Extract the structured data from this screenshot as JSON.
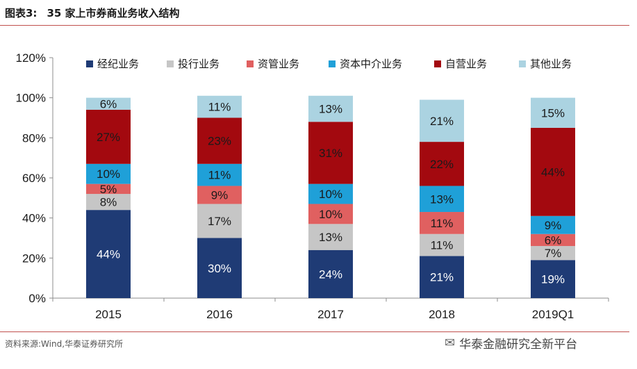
{
  "header": {
    "figure_num": "图表3:",
    "title": "35 家上市券商业务收入结构"
  },
  "footer": {
    "source": "资料来源:Wind,华泰证券研究所",
    "watermark": "华泰金融研究全新平台",
    "watermark_icon": "wechat-icon"
  },
  "chart_data": {
    "type": "bar",
    "stacked": true,
    "categories": [
      "2015",
      "2016",
      "2017",
      "2018",
      "2019Q1"
    ],
    "ylim": [
      0,
      120
    ],
    "yticks": [
      0,
      20,
      40,
      60,
      80,
      100,
      120
    ],
    "ytick_labels": [
      "0%",
      "20%",
      "40%",
      "60%",
      "80%",
      "100%",
      "120%"
    ],
    "legend_position": "top",
    "grid": false,
    "series": [
      {
        "name": "经纪业务",
        "color": "#1f3b75",
        "label_color": "#ffffff",
        "values": [
          44,
          30,
          24,
          21,
          19
        ]
      },
      {
        "name": "投行业务",
        "color": "#c6c6c6",
        "label_color": "#1a1a1a",
        "values": [
          8,
          17,
          13,
          11,
          7
        ]
      },
      {
        "name": "资管业务",
        "color": "#e06060",
        "label_color": "#1a1a1a",
        "values": [
          5,
          9,
          10,
          11,
          6
        ]
      },
      {
        "name": "资本中介业务",
        "color": "#1fa0d8",
        "label_color": "#1a1a1a",
        "values": [
          10,
          11,
          10,
          13,
          9
        ]
      },
      {
        "name": "自营业务",
        "color": "#a3090f",
        "label_color": "#1a1a1a",
        "values": [
          27,
          23,
          31,
          22,
          44
        ]
      },
      {
        "name": "其他业务",
        "color": "#abd3e1",
        "label_color": "#1a1a1a",
        "values": [
          6,
          11,
          13,
          21,
          15
        ]
      }
    ],
    "display_values": [
      [
        "44%",
        "30%",
        "24%",
        "21%",
        "19%"
      ],
      [
        "8%",
        "17%",
        "13%",
        "11%",
        "7%"
      ],
      [
        "5%",
        "9%",
        "10%",
        "11%",
        "6%"
      ],
      [
        "10%",
        "11%",
        "10%",
        "13%",
        "9%"
      ],
      [
        "27%",
        "23%",
        "31%",
        "22%",
        "44%"
      ],
      [
        "6%",
        "11%",
        "13%",
        "21%",
        "15%"
      ]
    ]
  }
}
